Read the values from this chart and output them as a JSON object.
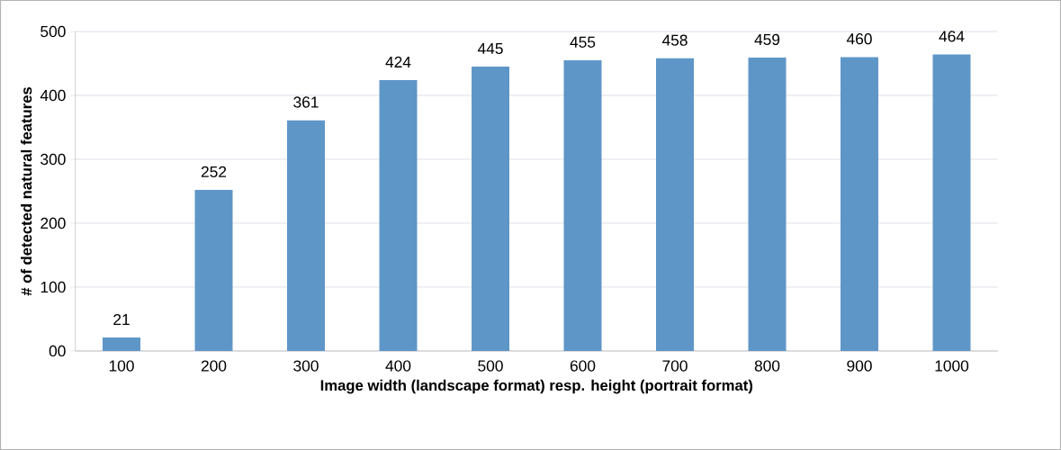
{
  "chart_data": {
    "type": "bar",
    "xlabel": "Image width (landscape format) resp. height (portrait format)",
    "ylabel": "# of detected natural features",
    "categories": [
      "100",
      "200",
      "300",
      "400",
      "500",
      "600",
      "700",
      "800",
      "900",
      "1000"
    ],
    "values": [
      21,
      252,
      361,
      424,
      445,
      455,
      458,
      459,
      460,
      464
    ],
    "color": "#5f96c8",
    "ylim": [
      0,
      500
    ],
    "yticks": [
      {
        "value": 0,
        "label": "00"
      },
      100,
      200,
      300,
      400,
      500
    ],
    "grid": "y",
    "data_labels": true
  }
}
